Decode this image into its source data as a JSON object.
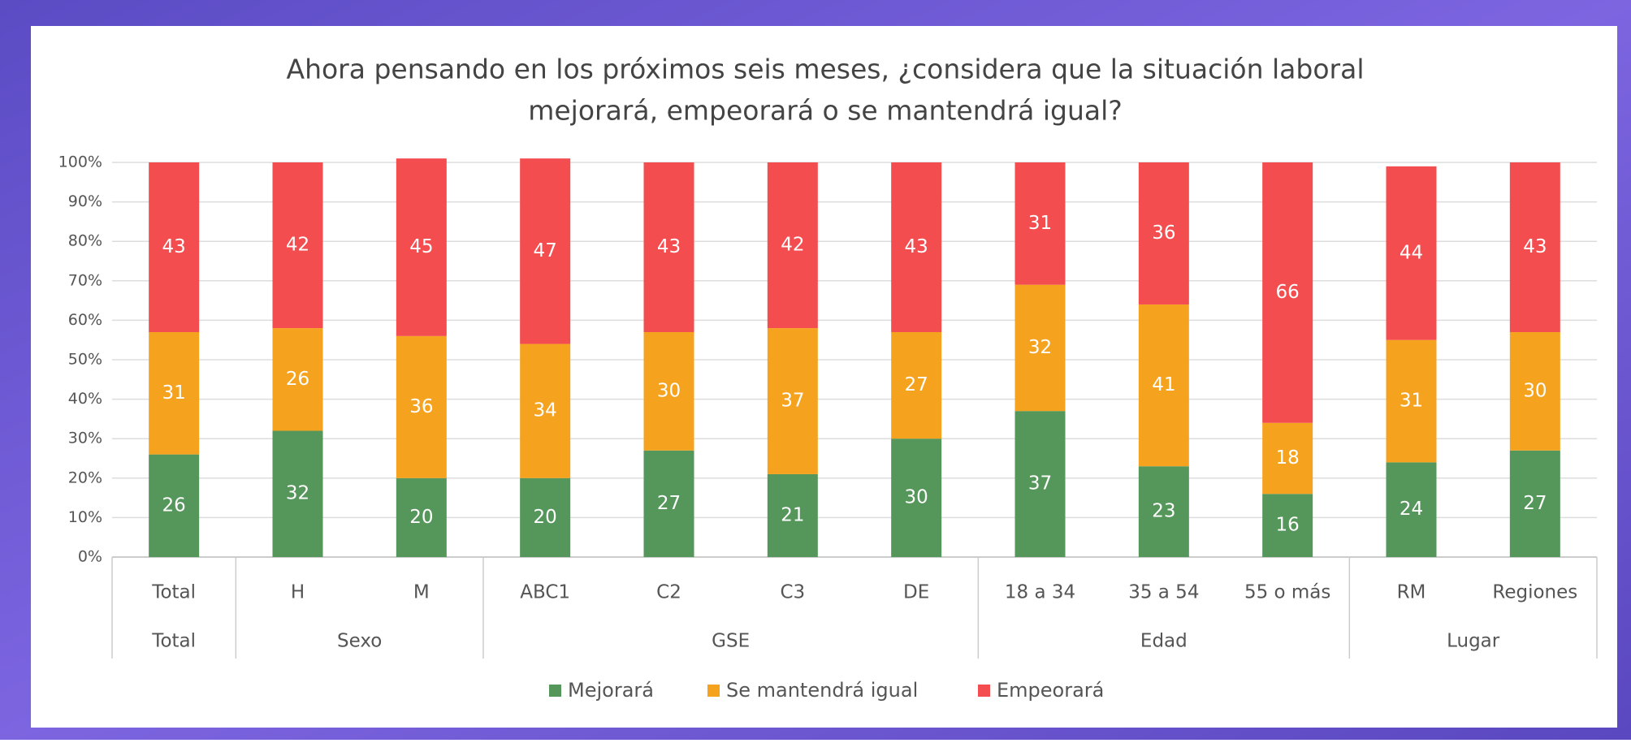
{
  "chart_data": {
    "type": "stacked_bar",
    "title": [
      "Ahora pensando en los próximos seis meses, ¿considera que la situación laboral",
      "mejorará, empeorará o se mantendrá igual?"
    ],
    "groups": [
      {
        "name": "Total",
        "categories": [
          "Total"
        ]
      },
      {
        "name": "Sexo",
        "categories": [
          "H",
          "M"
        ]
      },
      {
        "name": "GSE",
        "categories": [
          "ABC1",
          "C2",
          "C3",
          "DE"
        ]
      },
      {
        "name": "Edad",
        "categories": [
          "18 a 34",
          "35 a 54",
          "55 o más"
        ]
      },
      {
        "name": "Lugar",
        "categories": [
          "RM",
          "Regiones"
        ]
      }
    ],
    "series": [
      {
        "name": "Mejorará",
        "color": "#55965a",
        "values": [
          26,
          32,
          20,
          20,
          27,
          21,
          30,
          37,
          23,
          16,
          24,
          27
        ]
      },
      {
        "name": "Se mantendrá igual",
        "color": "#f5a31f",
        "values": [
          31,
          26,
          36,
          34,
          30,
          37,
          27,
          32,
          41,
          18,
          31,
          30
        ]
      },
      {
        "name": "Empeorará",
        "color": "#f44d4f",
        "values": [
          43,
          42,
          45,
          47,
          43,
          42,
          43,
          31,
          36,
          66,
          44,
          43
        ]
      }
    ],
    "ylim": [
      0,
      100
    ],
    "yticks": [
      {
        "value": 0,
        "label": "0%"
      },
      {
        "value": 10,
        "label": "10%"
      },
      {
        "value": 20,
        "label": "20%"
      },
      {
        "value": 30,
        "label": "30%"
      },
      {
        "value": 40,
        "label": "40%"
      },
      {
        "value": 50,
        "label": "50%"
      },
      {
        "value": 60,
        "label": "60%"
      },
      {
        "value": 70,
        "label": "70%"
      },
      {
        "value": 80,
        "label": "80%"
      },
      {
        "value": 90,
        "label": "90%"
      },
      {
        "value": 100,
        "label": "100%"
      }
    ],
    "grid": true,
    "legend": "bottom"
  }
}
